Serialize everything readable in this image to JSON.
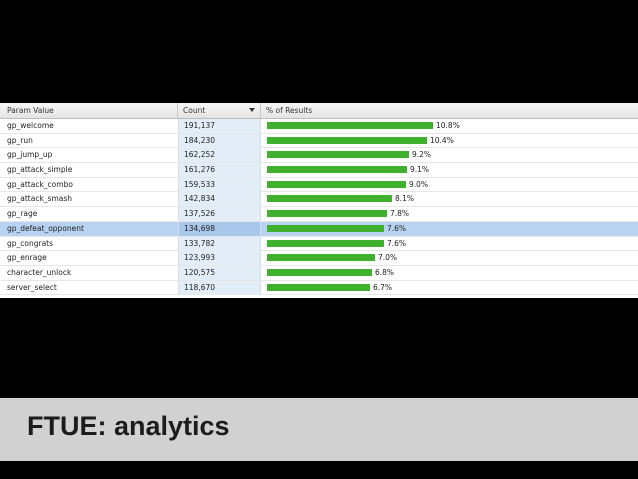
{
  "table": {
    "columns": {
      "param": "Param Value",
      "count": "Count",
      "pct": "% of Results",
      "sort_icon": "sort-descending-icon"
    },
    "bar_color": "#3fb12f",
    "selected_row_color": "#b8d3f2",
    "rows": [
      {
        "param": "gp_welcome",
        "count": "191,137",
        "pct": "10.8%",
        "fraction": 0.108,
        "selected": false
      },
      {
        "param": "gp_run",
        "count": "184,230",
        "pct": "10.4%",
        "fraction": 0.104,
        "selected": false
      },
      {
        "param": "gp_jump_up",
        "count": "162,252",
        "pct": "9.2%",
        "fraction": 0.092,
        "selected": false
      },
      {
        "param": "gp_attack_simple",
        "count": "161,276",
        "pct": "9.1%",
        "fraction": 0.091,
        "selected": false
      },
      {
        "param": "gp_attack_combo",
        "count": "159,533",
        "pct": "9.0%",
        "fraction": 0.09,
        "selected": false
      },
      {
        "param": "gp_attack_smash",
        "count": "142,834",
        "pct": "8.1%",
        "fraction": 0.081,
        "selected": false
      },
      {
        "param": "gp_rage",
        "count": "137,526",
        "pct": "7.8%",
        "fraction": 0.078,
        "selected": false
      },
      {
        "param": "gp_defeat_opponent",
        "count": "134,698",
        "pct": "7.6%",
        "fraction": 0.076,
        "selected": true
      },
      {
        "param": "gp_congrats",
        "count": "133,782",
        "pct": "7.6%",
        "fraction": 0.076,
        "selected": false
      },
      {
        "param": "gp_enrage",
        "count": "123,993",
        "pct": "7.0%",
        "fraction": 0.07,
        "selected": false
      },
      {
        "param": "character_unlock",
        "count": "120,575",
        "pct": "6.8%",
        "fraction": 0.068,
        "selected": false
      },
      {
        "param": "server_select",
        "count": "118,670",
        "pct": "6.7%",
        "fraction": 0.067,
        "selected": false
      }
    ]
  },
  "slide": {
    "title": "FTUE: analytics"
  }
}
